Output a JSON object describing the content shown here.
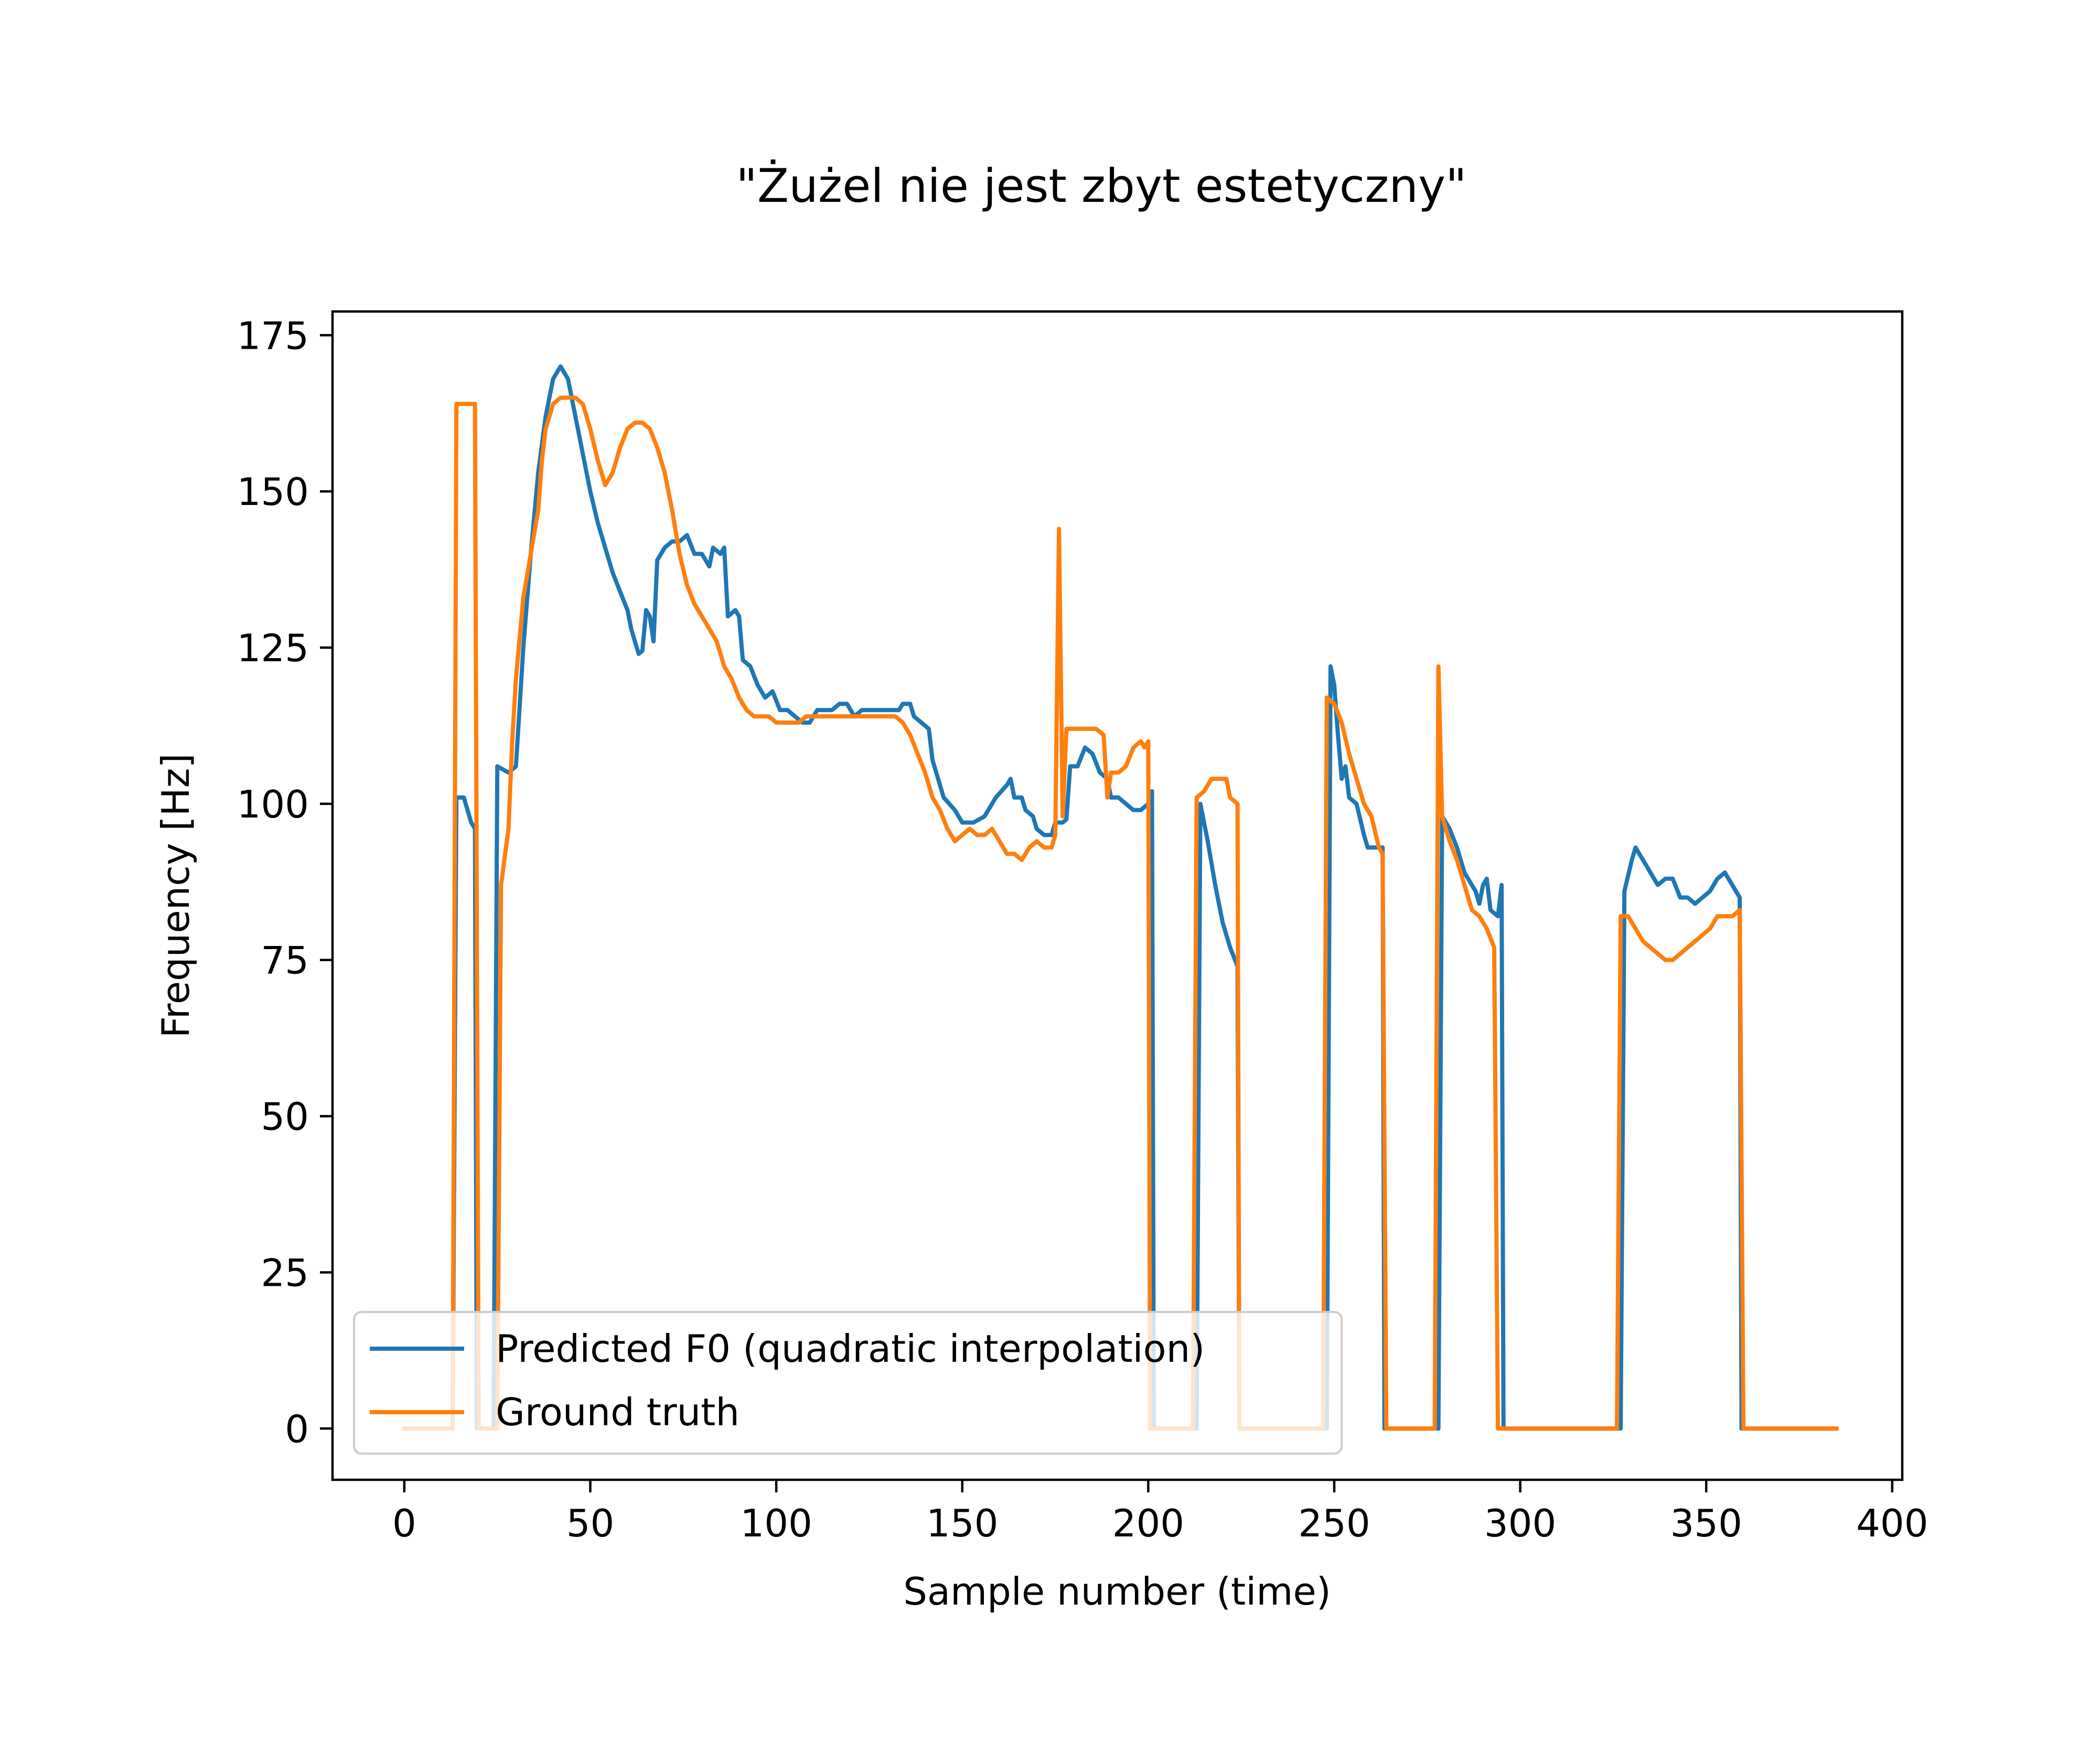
{
  "chart_data": {
    "type": "line",
    "title": "\"Żużel nie jest zbyt estetyczny\"",
    "xlabel": "Sample number (time)",
    "ylabel": "Frequency [Hz]",
    "xlim": [
      -19.3,
      402.7
    ],
    "ylim": [
      -8.2,
      178.8
    ],
    "xticks": [
      0,
      50,
      100,
      150,
      200,
      250,
      300,
      350,
      400
    ],
    "yticks": [
      0,
      25,
      50,
      75,
      100,
      125,
      150,
      175
    ],
    "grid": false,
    "legend_position": "lower-left",
    "series": [
      {
        "name": "Predicted F0 (quadratic interpolation)",
        "color": "#1f77b4",
        "points": [
          [
            0,
            0
          ],
          [
            13,
            0
          ],
          [
            14,
            101
          ],
          [
            16,
            101
          ],
          [
            18,
            97
          ],
          [
            19,
            96
          ],
          [
            19.5,
            0
          ],
          [
            24,
            0
          ],
          [
            25,
            106
          ],
          [
            28,
            105
          ],
          [
            30,
            106
          ],
          [
            32,
            125
          ],
          [
            34,
            140
          ],
          [
            36,
            153
          ],
          [
            38,
            162
          ],
          [
            40,
            168
          ],
          [
            42,
            170
          ],
          [
            44,
            168
          ],
          [
            46,
            162
          ],
          [
            48,
            156
          ],
          [
            50,
            150
          ],
          [
            52,
            145
          ],
          [
            54,
            141
          ],
          [
            56,
            137
          ],
          [
            58,
            134
          ],
          [
            60,
            131
          ],
          [
            61,
            128
          ],
          [
            63,
            124
          ],
          [
            64,
            124.5
          ],
          [
            65,
            131
          ],
          [
            66,
            130
          ],
          [
            67,
            126
          ],
          [
            68,
            139
          ],
          [
            70,
            141
          ],
          [
            72,
            142
          ],
          [
            74,
            142
          ],
          [
            76,
            143
          ],
          [
            78,
            140
          ],
          [
            80,
            140
          ],
          [
            82,
            138
          ],
          [
            83,
            141
          ],
          [
            85,
            140
          ],
          [
            86,
            141
          ],
          [
            87,
            130
          ],
          [
            89,
            131
          ],
          [
            90,
            130
          ],
          [
            91,
            123
          ],
          [
            93,
            122
          ],
          [
            95,
            119
          ],
          [
            97,
            117
          ],
          [
            99,
            118
          ],
          [
            101,
            115
          ],
          [
            103,
            115
          ],
          [
            105,
            114
          ],
          [
            107,
            113
          ],
          [
            109,
            113
          ],
          [
            111,
            115
          ],
          [
            113,
            115
          ],
          [
            115,
            115
          ],
          [
            117,
            116
          ],
          [
            119,
            116
          ],
          [
            121,
            114
          ],
          [
            123,
            115
          ],
          [
            125,
            115
          ],
          [
            127,
            115
          ],
          [
            129,
            115
          ],
          [
            131,
            115
          ],
          [
            133,
            115
          ],
          [
            134,
            116
          ],
          [
            136,
            116
          ],
          [
            137,
            114
          ],
          [
            139,
            113
          ],
          [
            141,
            112
          ],
          [
            142,
            107
          ],
          [
            145,
            101
          ],
          [
            148,
            99
          ],
          [
            150,
            97
          ],
          [
            153,
            97
          ],
          [
            156,
            98
          ],
          [
            159,
            101
          ],
          [
            162,
            103
          ],
          [
            163,
            104
          ],
          [
            164,
            101
          ],
          [
            166,
            101
          ],
          [
            167,
            99
          ],
          [
            169,
            98
          ],
          [
            170,
            96
          ],
          [
            172,
            95
          ],
          [
            174,
            95
          ],
          [
            175,
            97
          ],
          [
            177,
            97
          ],
          [
            178,
            97.5
          ],
          [
            179,
            106
          ],
          [
            181,
            106
          ],
          [
            183,
            109
          ],
          [
            185,
            108
          ],
          [
            187,
            105
          ],
          [
            189,
            104
          ],
          [
            190,
            101
          ],
          [
            192,
            101
          ],
          [
            194,
            100
          ],
          [
            196,
            99
          ],
          [
            198,
            99
          ],
          [
            200,
            100
          ],
          [
            201,
            102
          ],
          [
            201.5,
            0
          ],
          [
            213,
            0
          ],
          [
            214,
            100
          ],
          [
            216,
            94
          ],
          [
            218,
            87
          ],
          [
            220,
            81
          ],
          [
            222,
            77
          ],
          [
            224,
            74
          ],
          [
            224.5,
            0
          ],
          [
            248,
            0
          ],
          [
            249,
            122
          ],
          [
            250,
            119
          ],
          [
            251,
            111
          ],
          [
            252,
            104
          ],
          [
            253,
            106
          ],
          [
            254,
            101
          ],
          [
            256,
            100
          ],
          [
            258,
            95
          ],
          [
            259,
            93
          ],
          [
            261,
            93
          ],
          [
            263,
            93
          ],
          [
            263.5,
            0
          ],
          [
            278,
            0
          ],
          [
            279,
            98
          ],
          [
            281,
            96
          ],
          [
            283,
            93
          ],
          [
            285,
            89
          ],
          [
            286,
            88
          ],
          [
            288,
            86
          ],
          [
            289,
            84
          ],
          [
            290,
            87
          ],
          [
            291,
            88
          ],
          [
            292,
            83
          ],
          [
            294,
            82
          ],
          [
            295,
            87
          ],
          [
            295.5,
            0
          ],
          [
            327,
            0
          ],
          [
            328,
            86
          ],
          [
            330,
            91
          ],
          [
            331,
            93
          ],
          [
            333,
            91
          ],
          [
            335,
            89
          ],
          [
            337,
            87
          ],
          [
            339,
            88
          ],
          [
            341,
            88
          ],
          [
            343,
            85
          ],
          [
            345,
            85
          ],
          [
            347,
            84
          ],
          [
            349,
            85
          ],
          [
            351,
            86
          ],
          [
            353,
            88
          ],
          [
            355,
            89
          ],
          [
            357,
            87
          ],
          [
            358,
            86
          ],
          [
            359,
            85
          ],
          [
            359.5,
            0
          ],
          [
            385,
            0
          ]
        ]
      },
      {
        "name": "Ground truth",
        "color": "#ff7f0e",
        "points": [
          [
            0,
            0
          ],
          [
            13,
            0
          ],
          [
            14,
            164
          ],
          [
            19,
            164
          ],
          [
            20,
            0
          ],
          [
            25,
            0
          ],
          [
            26,
            87
          ],
          [
            28,
            96
          ],
          [
            29,
            110
          ],
          [
            30,
            120
          ],
          [
            32,
            133
          ],
          [
            34,
            140
          ],
          [
            36,
            147
          ],
          [
            37,
            155
          ],
          [
            38,
            160
          ],
          [
            40,
            164
          ],
          [
            42,
            165
          ],
          [
            44,
            165
          ],
          [
            46,
            165
          ],
          [
            48,
            164
          ],
          [
            50,
            160
          ],
          [
            52,
            155
          ],
          [
            54,
            151
          ],
          [
            56,
            153
          ],
          [
            58,
            157
          ],
          [
            60,
            160
          ],
          [
            62,
            161
          ],
          [
            64,
            161
          ],
          [
            66,
            160
          ],
          [
            68,
            157
          ],
          [
            70,
            153
          ],
          [
            72,
            147
          ],
          [
            74,
            140
          ],
          [
            76,
            135
          ],
          [
            78,
            132
          ],
          [
            80,
            130
          ],
          [
            82,
            128
          ],
          [
            84,
            126
          ],
          [
            86,
            122
          ],
          [
            88,
            120
          ],
          [
            90,
            117
          ],
          [
            92,
            115
          ],
          [
            94,
            114
          ],
          [
            96,
            114
          ],
          [
            98,
            114
          ],
          [
            100,
            113
          ],
          [
            102,
            113
          ],
          [
            104,
            113
          ],
          [
            106,
            113
          ],
          [
            108,
            114
          ],
          [
            110,
            114
          ],
          [
            112,
            114
          ],
          [
            114,
            114
          ],
          [
            116,
            114
          ],
          [
            118,
            114
          ],
          [
            120,
            114
          ],
          [
            122,
            114
          ],
          [
            124,
            114
          ],
          [
            126,
            114
          ],
          [
            128,
            114
          ],
          [
            130,
            114
          ],
          [
            132,
            114
          ],
          [
            134,
            113
          ],
          [
            136,
            111
          ],
          [
            138,
            108
          ],
          [
            140,
            105
          ],
          [
            142,
            101
          ],
          [
            144,
            99
          ],
          [
            146,
            96
          ],
          [
            148,
            94
          ],
          [
            150,
            95
          ],
          [
            152,
            96
          ],
          [
            154,
            95
          ],
          [
            156,
            95
          ],
          [
            158,
            96
          ],
          [
            160,
            94
          ],
          [
            162,
            92
          ],
          [
            164,
            92
          ],
          [
            166,
            91
          ],
          [
            168,
            93
          ],
          [
            170,
            94
          ],
          [
            172,
            93
          ],
          [
            174,
            93
          ],
          [
            175,
            95
          ],
          [
            176,
            144
          ],
          [
            177,
            98
          ],
          [
            178,
            112
          ],
          [
            180,
            112
          ],
          [
            182,
            112
          ],
          [
            184,
            112
          ],
          [
            186,
            112
          ],
          [
            188,
            111
          ],
          [
            189,
            101
          ],
          [
            190,
            105
          ],
          [
            192,
            105
          ],
          [
            194,
            106
          ],
          [
            196,
            109
          ],
          [
            198,
            110
          ],
          [
            199,
            109
          ],
          [
            200,
            110
          ],
          [
            200.5,
            0
          ],
          [
            212,
            0
          ],
          [
            213,
            101
          ],
          [
            215,
            102
          ],
          [
            217,
            104
          ],
          [
            219,
            104
          ],
          [
            221,
            104
          ],
          [
            222,
            101
          ],
          [
            224,
            100
          ],
          [
            224.5,
            0
          ],
          [
            247,
            0
          ],
          [
            248,
            117
          ],
          [
            250,
            116
          ],
          [
            252,
            113
          ],
          [
            254,
            108
          ],
          [
            256,
            104
          ],
          [
            258,
            100
          ],
          [
            260,
            98
          ],
          [
            262,
            93
          ],
          [
            263,
            92
          ],
          [
            264,
            0
          ],
          [
            277,
            0
          ],
          [
            278,
            122
          ],
          [
            279,
            98
          ],
          [
            281,
            94
          ],
          [
            283,
            91
          ],
          [
            285,
            87
          ],
          [
            287,
            83
          ],
          [
            289,
            82
          ],
          [
            291,
            80
          ],
          [
            293,
            77
          ],
          [
            294,
            0
          ],
          [
            326,
            0
          ],
          [
            327,
            82
          ],
          [
            329,
            82
          ],
          [
            331,
            80
          ],
          [
            333,
            78
          ],
          [
            335,
            77
          ],
          [
            337,
            76
          ],
          [
            339,
            75
          ],
          [
            341,
            75
          ],
          [
            343,
            76
          ],
          [
            345,
            77
          ],
          [
            347,
            78
          ],
          [
            349,
            79
          ],
          [
            351,
            80
          ],
          [
            353,
            82
          ],
          [
            355,
            82
          ],
          [
            357,
            82
          ],
          [
            359,
            83
          ],
          [
            360,
            0
          ],
          [
            385,
            0
          ]
        ]
      }
    ]
  }
}
